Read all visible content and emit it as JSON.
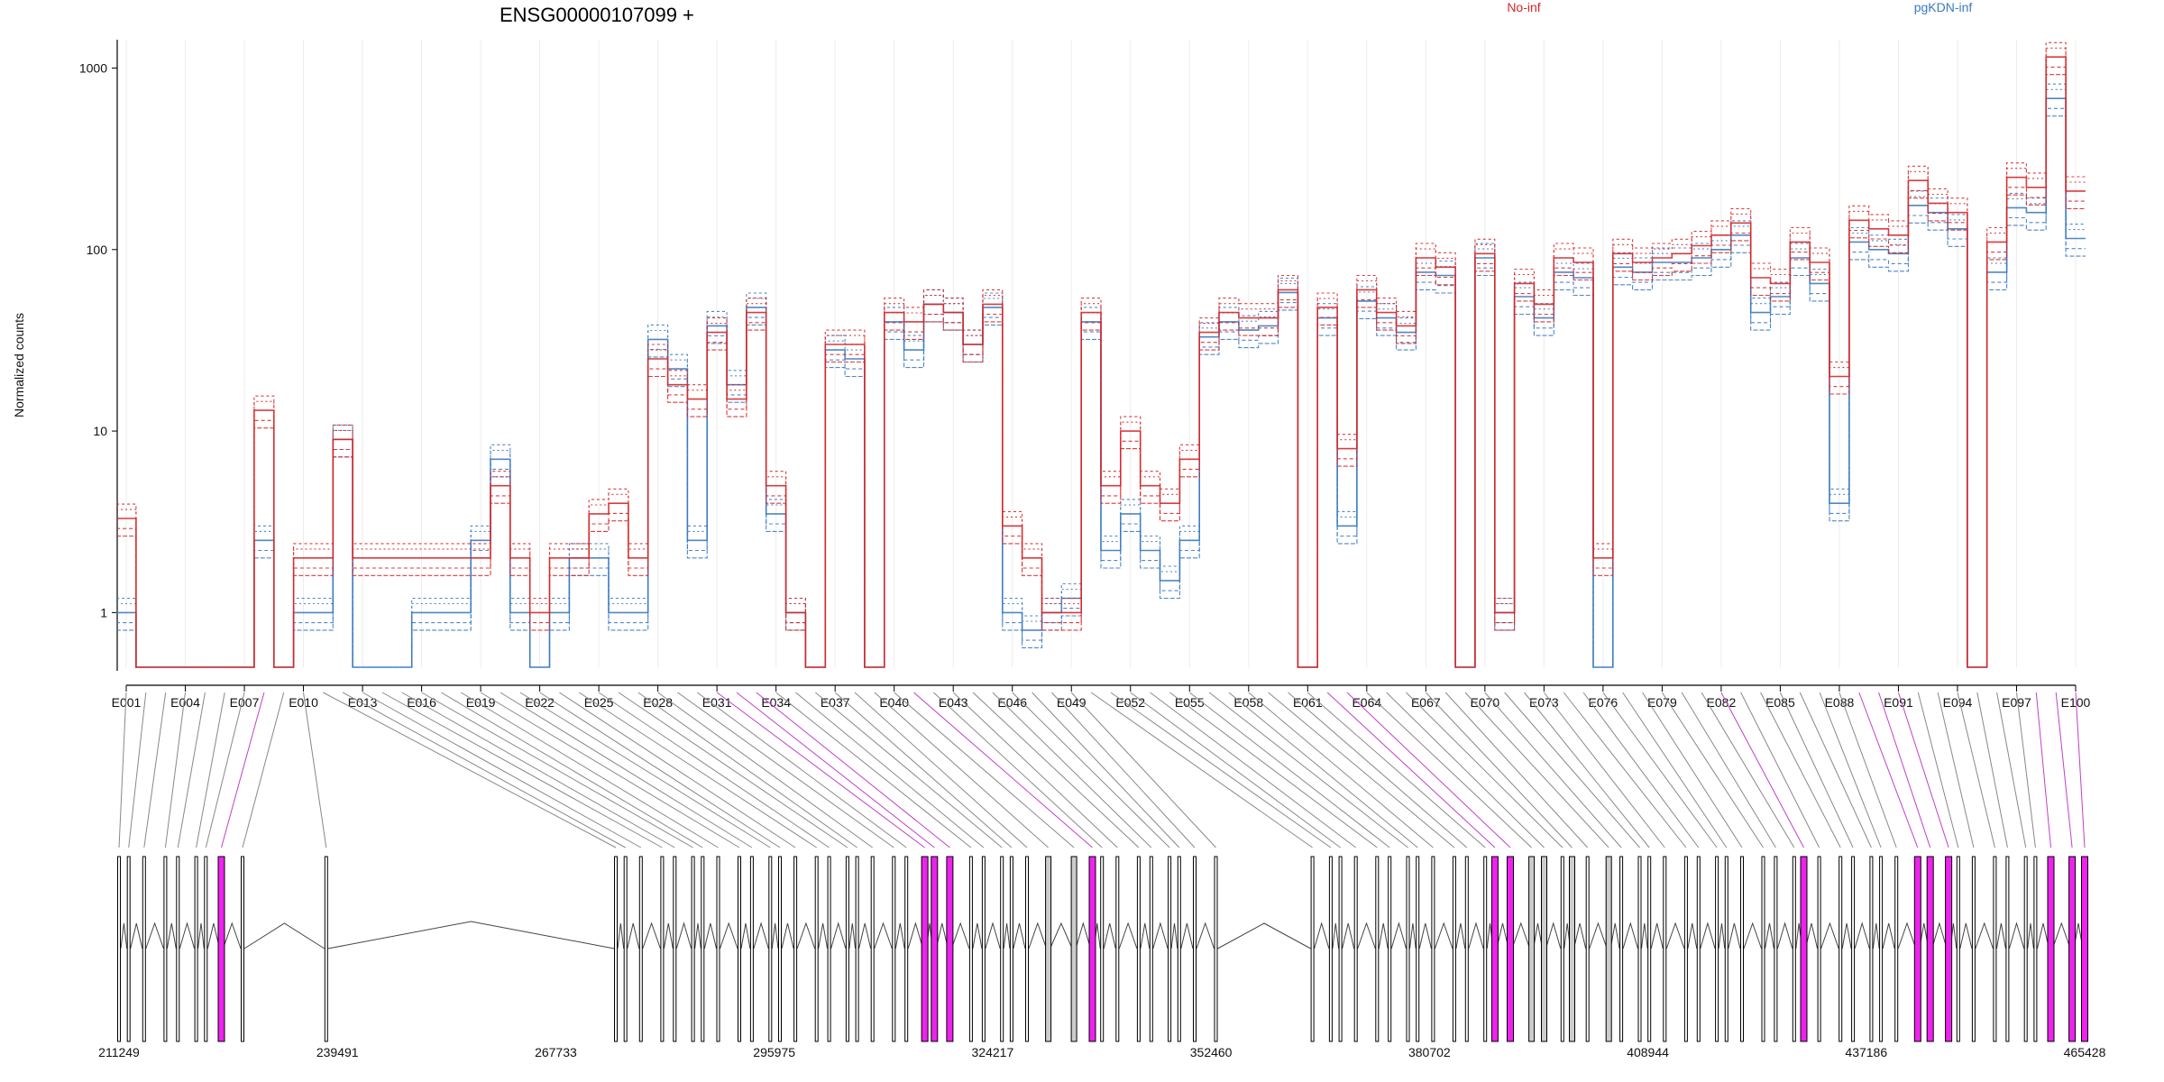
{
  "chart_data": {
    "type": "line",
    "title": "ENSG00000107099 +",
    "ylabel": "Normalized counts",
    "yscale": "log",
    "ylim": [
      0.5,
      1500
    ],
    "yticks": [
      1,
      10,
      100,
      1000
    ],
    "ytick_labels": [
      "1",
      "10",
      "100",
      "1000"
    ],
    "legend": [
      {
        "name": "No-inf",
        "color": "#d62728"
      },
      {
        "name": "pgKDN-inf",
        "color": "#3b7ac0"
      }
    ],
    "legend_placement": "top-right",
    "exon_count": 100,
    "xtick_labels": [
      "E001",
      "E004",
      "E007",
      "E010",
      "E013",
      "E016",
      "E019",
      "E022",
      "E025",
      "E028",
      "E031",
      "E034",
      "E037",
      "E040",
      "E043",
      "E046",
      "E049",
      "E052",
      "E055",
      "E058",
      "E061",
      "E064",
      "E067",
      "E070",
      "E073",
      "E076",
      "E079",
      "E082",
      "E085",
      "E088",
      "E091",
      "E094",
      "E097",
      "E100"
    ],
    "red_profile": [
      3.3,
      0.5,
      0.5,
      0.5,
      0.5,
      0.5,
      0.5,
      13,
      0.5,
      2,
      2,
      9,
      2,
      2,
      2,
      2,
      2,
      2,
      2,
      5,
      2,
      1,
      2,
      2,
      3.5,
      4,
      2,
      25,
      18,
      15,
      35,
      15,
      45,
      5,
      1,
      0.5,
      30,
      30,
      0.5,
      45,
      40,
      50,
      45,
      30,
      50,
      3,
      2,
      1,
      1,
      45,
      5,
      10,
      5,
      4,
      7,
      35,
      45,
      42,
      42,
      60,
      0.5,
      48,
      8,
      60,
      45,
      38,
      90,
      80,
      0.5,
      95,
      1,
      65,
      50,
      90,
      85,
      2,
      95,
      85,
      90,
      95,
      105,
      120,
      140,
      70,
      65,
      110,
      85,
      20,
      145,
      130,
      120,
      240,
      180,
      160,
      0.5,
      110,
      250,
      220,
      1150,
      210
    ],
    "blue_profile": [
      1,
      0.5,
      0.5,
      0.5,
      0.5,
      0.5,
      0.5,
      2.5,
      0.5,
      1,
      1,
      9,
      0.5,
      0.5,
      0.5,
      1,
      1,
      1,
      2.5,
      7,
      1,
      0.5,
      1,
      2,
      2,
      1,
      1,
      32,
      22,
      2.5,
      38,
      18,
      48,
      3.5,
      1,
      0.5,
      28,
      25,
      0.5,
      40,
      28,
      50,
      45,
      30,
      48,
      1,
      0.8,
      1,
      1.2,
      40,
      2.2,
      3.5,
      2.2,
      1.5,
      2.5,
      33,
      40,
      36,
      38,
      58,
      0.5,
      42,
      3,
      52,
      42,
      35,
      75,
      72,
      0.5,
      90,
      1,
      55,
      42,
      75,
      70,
      0.5,
      80,
      75,
      85,
      85,
      90,
      100,
      120,
      45,
      55,
      90,
      65,
      4,
      110,
      100,
      95,
      175,
      160,
      130,
      0.5,
      75,
      170,
      160,
      680,
      115
    ],
    "genomic_ticks": [
      "211249",
      "239491",
      "267733",
      "295975",
      "324217",
      "352460",
      "380702",
      "408944",
      "437186",
      "465428"
    ],
    "highlight_color": "#ee22ee",
    "exon_highlight": [
      "none",
      "none",
      "none",
      "none",
      "none",
      "none",
      "none",
      "highlight",
      "none",
      "none",
      "none",
      "none",
      "none",
      "none",
      "none",
      "none",
      "none",
      "none",
      "none",
      "none",
      "none",
      "none",
      "none",
      "none",
      "none",
      "none",
      "none",
      "none",
      "none",
      "none",
      "highlight",
      "highlight",
      "highlight",
      "none",
      "none",
      "none",
      "none",
      "none",
      "gray",
      "gray",
      "highlight",
      "none",
      "none",
      "none",
      "none",
      "none",
      "none",
      "none",
      "none",
      "none",
      "none",
      "none",
      "none",
      "none",
      "none",
      "none",
      "none",
      "none",
      "none",
      "none",
      "none",
      "highlight",
      "highlight",
      "gray",
      "gray",
      "none",
      "gray",
      "none",
      "gray",
      "none",
      "none",
      "none",
      "none",
      "none",
      "none",
      "none",
      "none",
      "none",
      "none",
      "none",
      "none",
      "highlight",
      "none",
      "none",
      "none",
      "none",
      "none",
      "none",
      "highlight",
      "highlight",
      "highlight",
      "none",
      "none",
      "none",
      "none",
      "none",
      "none",
      "highlight",
      "highlight",
      "highlight"
    ]
  }
}
